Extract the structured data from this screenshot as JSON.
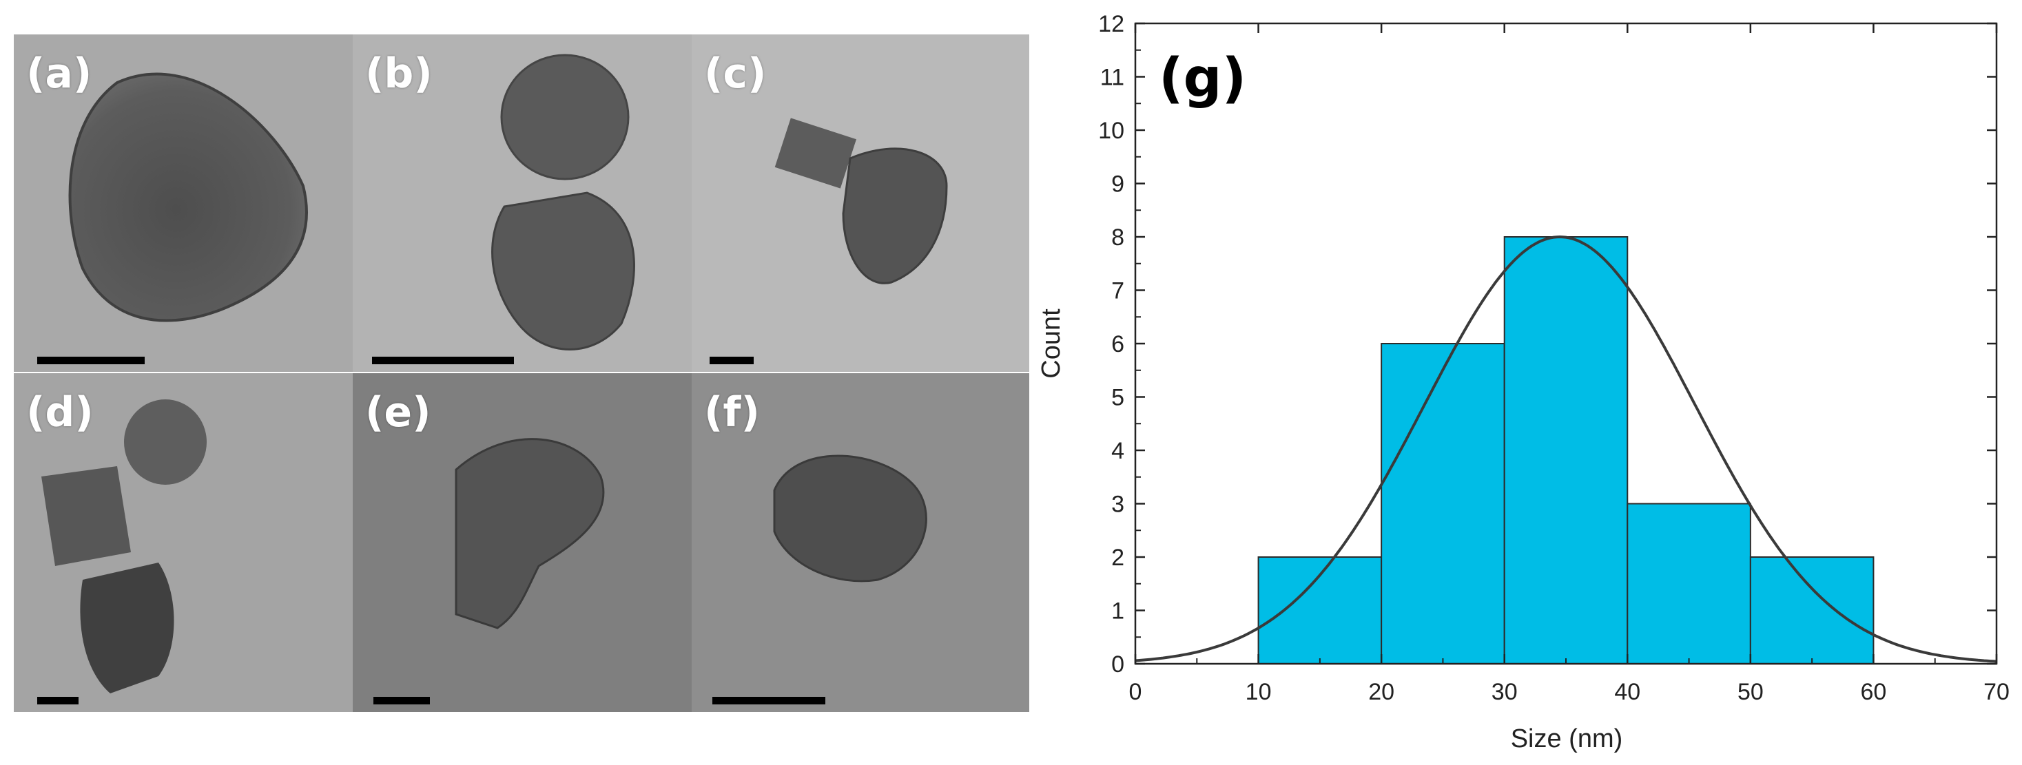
{
  "panels": [
    {
      "label": "(a)"
    },
    {
      "label": "(b)"
    },
    {
      "label": "(c)"
    },
    {
      "label": "(d)"
    },
    {
      "label": "(e)"
    },
    {
      "label": "(f)"
    }
  ],
  "chart_data": {
    "type": "bar",
    "panel_label": "(g)",
    "title": "",
    "xlabel": "Size (nm)",
    "ylabel": "Count",
    "xlim": [
      0,
      70
    ],
    "ylim": [
      0,
      12
    ],
    "x_ticks": [
      "0",
      "10",
      "20",
      "30",
      "40",
      "50",
      "60",
      "70"
    ],
    "y_ticks": [
      "0",
      "1",
      "2",
      "3",
      "4",
      "5",
      "6",
      "7",
      "8",
      "9",
      "10",
      "11",
      "12"
    ],
    "bins": [
      {
        "x0": 10,
        "x1": 20,
        "count": 2
      },
      {
        "x0": 20,
        "x1": 30,
        "count": 6
      },
      {
        "x0": 30,
        "x1": 40,
        "count": 8
      },
      {
        "x0": 40,
        "x1": 50,
        "count": 3
      },
      {
        "x0": 50,
        "x1": 60,
        "count": 2
      }
    ],
    "fit": {
      "type": "gaussian",
      "mean": 34.5,
      "sigma": 11,
      "peak": 8
    },
    "bar_color": "#00bde6",
    "bar_edge_color": "#2b2b2b",
    "fit_color": "#3a3a3a"
  }
}
